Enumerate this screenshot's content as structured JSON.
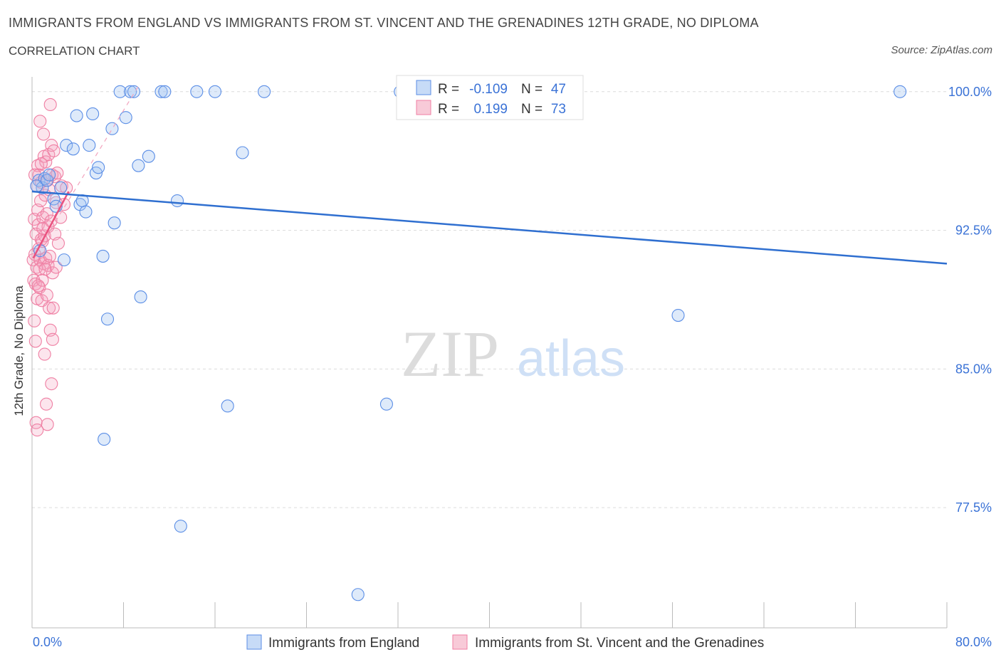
{
  "title": "IMMIGRANTS FROM ENGLAND VS IMMIGRANTS FROM ST. VINCENT AND THE GRENADINES 12TH GRADE, NO DIPLOMA",
  "subtitle": "CORRELATION CHART",
  "source": "Source: ZipAtlas.com",
  "watermark": {
    "zip": "ZIP",
    "atlas": "atlas"
  },
  "stats_legend": [
    {
      "r_label": "R =",
      "r_value": "-0.109",
      "n_label": "N =",
      "n_value": "47",
      "color": "#5b8ee6"
    },
    {
      "r_label": "R =",
      "r_value": "0.199",
      "n_label": "N =",
      "n_value": "73",
      "color": "#ef7fa3"
    }
  ],
  "chart_data": {
    "type": "scatter",
    "ylabel": "12th Grade, No Diploma",
    "xlim": [
      0,
      80
    ],
    "ylim": [
      71.0,
      100.8
    ],
    "x_tick_labels": [
      "0.0%",
      "80.0%"
    ],
    "y_ticks": [
      77.5,
      85.0,
      92.5,
      100.0
    ],
    "y_tick_labels": [
      "77.5%",
      "85.0%",
      "92.5%",
      "100.0%"
    ],
    "grid": true,
    "legend_position": "bottom",
    "series": [
      {
        "name": "Immigrants from England",
        "color": "#5b8ee6",
        "trend": {
          "x": [
            0,
            80
          ],
          "y": [
            94.6,
            90.7
          ]
        },
        "points": [
          [
            0.6,
            95.2
          ],
          [
            0.9,
            94.8
          ],
          [
            0.7,
            91.4
          ],
          [
            1.1,
            95.3
          ],
          [
            1.3,
            95.2
          ],
          [
            1.5,
            95.5
          ],
          [
            1.9,
            94.2
          ],
          [
            2.1,
            93.8
          ],
          [
            2.5,
            94.8
          ],
          [
            2.8,
            90.9
          ],
          [
            3.0,
            97.1
          ],
          [
            3.6,
            96.9
          ],
          [
            3.9,
            98.7
          ],
          [
            4.2,
            93.9
          ],
          [
            4.4,
            94.1
          ],
          [
            4.7,
            93.5
          ],
          [
            5.0,
            97.1
          ],
          [
            5.3,
            98.8
          ],
          [
            5.6,
            95.6
          ],
          [
            5.8,
            95.9
          ],
          [
            6.2,
            91.1
          ],
          [
            6.6,
            87.7
          ],
          [
            7.0,
            98.0
          ],
          [
            7.2,
            92.9
          ],
          [
            7.7,
            100.0
          ],
          [
            8.2,
            98.6
          ],
          [
            8.6,
            100.0
          ],
          [
            8.9,
            100.0
          ],
          [
            9.3,
            96.0
          ],
          [
            9.5,
            88.9
          ],
          [
            10.2,
            96.5
          ],
          [
            11.3,
            100.0
          ],
          [
            11.6,
            100.0
          ],
          [
            12.7,
            94.1
          ],
          [
            13.0,
            76.5
          ],
          [
            14.4,
            100.0
          ],
          [
            16.0,
            100.0
          ],
          [
            17.1,
            83.0
          ],
          [
            18.4,
            96.7
          ],
          [
            20.3,
            100.0
          ],
          [
            31.0,
            83.1
          ],
          [
            32.2,
            100.0
          ],
          [
            6.3,
            81.2
          ],
          [
            28.5,
            72.8
          ],
          [
            56.5,
            87.9
          ],
          [
            75.9,
            100.0
          ],
          [
            0.4,
            94.9
          ]
        ]
      },
      {
        "name": "Immigrants from St. Vincent and the Grenadines",
        "color": "#ef7fa3",
        "trend": {
          "x": [
            0.1,
            3.2
          ],
          "y": [
            91.0,
            94.6
          ]
        },
        "trend_ext": {
          "x": [
            0.1,
            9.3
          ],
          "y": [
            91.0,
            100.3
          ]
        },
        "points": [
          [
            0.1,
            90.9
          ],
          [
            0.15,
            89.8
          ],
          [
            0.2,
            93.1
          ],
          [
            0.2,
            87.6
          ],
          [
            0.25,
            91.2
          ],
          [
            0.3,
            86.5
          ],
          [
            0.3,
            89.6
          ],
          [
            0.35,
            92.3
          ],
          [
            0.4,
            94.9
          ],
          [
            0.4,
            90.5
          ],
          [
            0.45,
            88.8
          ],
          [
            0.5,
            93.6
          ],
          [
            0.5,
            96.0
          ],
          [
            0.55,
            92.8
          ],
          [
            0.6,
            91.5
          ],
          [
            0.6,
            95.5
          ],
          [
            0.65,
            89.4
          ],
          [
            0.7,
            98.4
          ],
          [
            0.7,
            90.9
          ],
          [
            0.75,
            94.1
          ],
          [
            0.8,
            92.0
          ],
          [
            0.8,
            95.1
          ],
          [
            0.85,
            88.7
          ],
          [
            0.9,
            91.9
          ],
          [
            0.9,
            89.8
          ],
          [
            0.95,
            93.2
          ],
          [
            1.0,
            97.7
          ],
          [
            1.0,
            90.7
          ],
          [
            1.05,
            96.5
          ],
          [
            1.1,
            85.8
          ],
          [
            1.1,
            92.2
          ],
          [
            1.15,
            94.4
          ],
          [
            1.2,
            91.0
          ],
          [
            1.2,
            96.2
          ],
          [
            1.25,
            83.1
          ],
          [
            1.3,
            89.0
          ],
          [
            1.3,
            93.4
          ],
          [
            1.35,
            95.2
          ],
          [
            1.4,
            90.6
          ],
          [
            1.4,
            92.7
          ],
          [
            1.45,
            96.6
          ],
          [
            1.5,
            88.3
          ],
          [
            1.5,
            94.7
          ],
          [
            1.55,
            91.1
          ],
          [
            1.6,
            87.1
          ],
          [
            1.6,
            99.3
          ],
          [
            1.65,
            93.0
          ],
          [
            1.7,
            84.2
          ],
          [
            1.7,
            97.1
          ],
          [
            1.75,
            95.5
          ],
          [
            1.8,
            90.2
          ],
          [
            1.8,
            86.6
          ],
          [
            1.85,
            88.3
          ],
          [
            1.9,
            96.8
          ],
          [
            2.0,
            92.3
          ],
          [
            2.0,
            95.4
          ],
          [
            2.1,
            90.5
          ],
          [
            2.1,
            94.0
          ],
          [
            2.2,
            95.6
          ],
          [
            2.3,
            91.8
          ],
          [
            2.5,
            93.2
          ],
          [
            2.6,
            94.9
          ],
          [
            2.8,
            93.9
          ],
          [
            3.0,
            94.8
          ],
          [
            0.35,
            82.1
          ],
          [
            0.45,
            81.7
          ],
          [
            1.35,
            82.0
          ],
          [
            0.25,
            95.5
          ],
          [
            0.55,
            89.5
          ],
          [
            0.65,
            90.4
          ],
          [
            0.8,
            96.1
          ],
          [
            0.95,
            92.6
          ],
          [
            1.15,
            90.4
          ]
        ]
      }
    ]
  }
}
